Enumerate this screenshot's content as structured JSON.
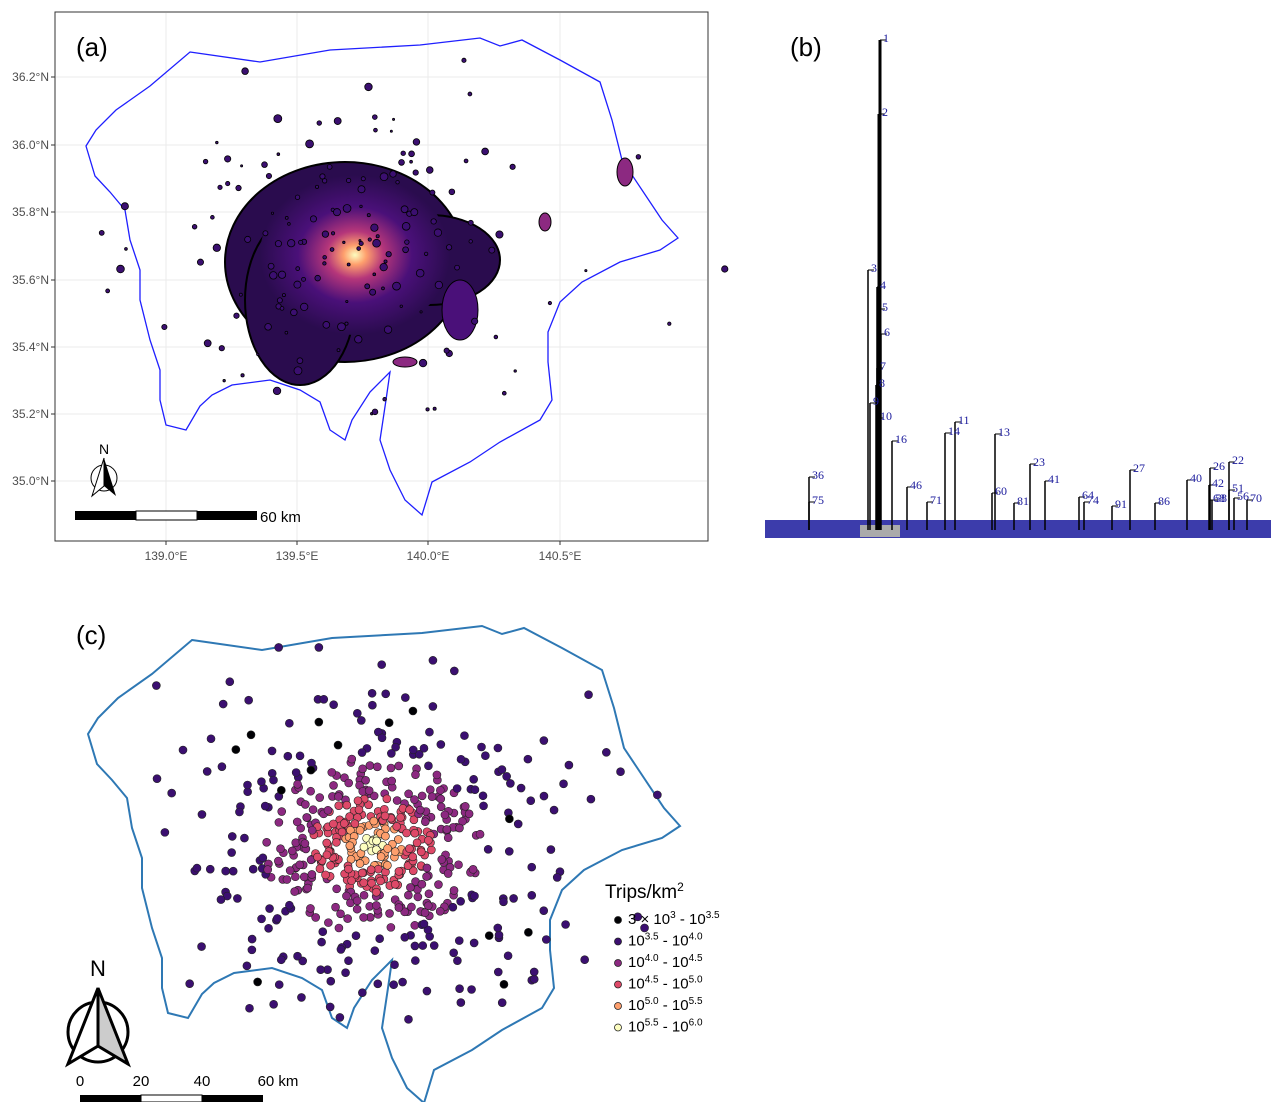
{
  "panel_a": {
    "label": "(a)",
    "y_ticks": [
      "36.2°N",
      "36.0°N",
      "35.8°N",
      "35.6°N",
      "35.4°N",
      "35.2°N",
      "35.0°N"
    ],
    "x_ticks": [
      "139.0°E",
      "139.5°E",
      "140.0°E",
      "140.5°E"
    ],
    "scale_label": "60 km",
    "north": "N"
  },
  "panel_b": {
    "label": "(b)",
    "leaf_labels": [
      "1",
      "2",
      "3",
      "4",
      "5",
      "6",
      "7",
      "8",
      "9",
      "10",
      "11",
      "13",
      "14",
      "16",
      "22",
      "23",
      "26",
      "27",
      "36",
      "40",
      "41",
      "42",
      "46",
      "51",
      "56",
      "58",
      "60",
      "64",
      "68",
      "70",
      "71",
      "74",
      "75",
      "81",
      "86",
      "91"
    ]
  },
  "panel_c": {
    "label": "(c)",
    "legend_title": [
      "Trips/km",
      "2"
    ],
    "legend": [
      {
        "parts": [
          "3 × 10",
          "3",
          " - 10",
          "3.5"
        ],
        "color": "#000004"
      },
      {
        "parts": [
          "10",
          "3.5",
          " - 10",
          "4.0"
        ],
        "color": "#3b0f70"
      },
      {
        "parts": [
          "10",
          "4.0",
          " - 10",
          "4.5"
        ],
        "color": "#8c2981"
      },
      {
        "parts": [
          "10",
          "4.5",
          " - 10",
          "5.0"
        ],
        "color": "#de4968"
      },
      {
        "parts": [
          "10",
          "5.0",
          " - 10",
          "5.5"
        ],
        "color": "#fe9f6d"
      },
      {
        "parts": [
          "10",
          "5.5",
          " - 10",
          "6.0"
        ],
        "color": "#fcfdbf"
      }
    ],
    "north": "N",
    "scale_labels": [
      "0",
      "20",
      "40",
      "60 km"
    ]
  }
}
